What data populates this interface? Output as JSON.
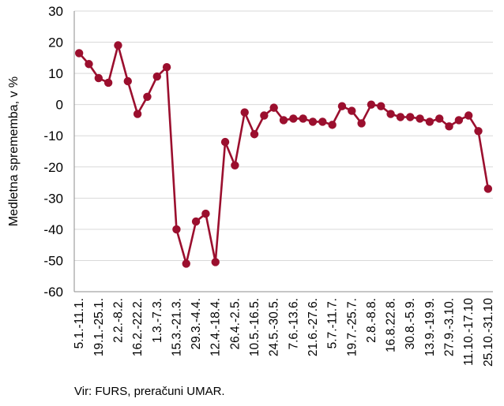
{
  "chart_data": {
    "type": "line",
    "ylabel": "Medletna sprememba, v %",
    "ylim": [
      -60,
      30
    ],
    "yticks": [
      30,
      20,
      10,
      0,
      -10,
      -20,
      -30,
      -40,
      -50,
      -60
    ],
    "grid": "horizontal",
    "categories": [
      "5.1.-11.1.",
      "",
      "19.1.-25.1.",
      "",
      "2.2.-8.2.",
      "",
      "16.2.-22.2.",
      "",
      "1.3.-7.3.",
      "",
      "15.3.-21.3.",
      "",
      "29.3.-4.4.",
      "",
      "12.4.-18.4.",
      "",
      "26.4.-2.5.",
      "",
      "10.5.-16.5.",
      "",
      "24.5.-30.5.",
      "",
      "7.6.-13.6.",
      "",
      "21.6.-27.6.",
      "",
      "5.7.-11.7.",
      "",
      "19.7.-25.7.",
      "",
      "2.8.-8.8.",
      "",
      "16.8.22.8.",
      "",
      "30.8.-5.9.",
      "",
      "13.9.-19.9.",
      "",
      "27.9.-3.10.",
      "",
      "11.10.-17.10",
      "",
      "25.10.-31.10"
    ],
    "series": [
      {
        "color": "#9b0f2e",
        "values": [
          16.5,
          13,
          8.5,
          7,
          19,
          7.5,
          -3,
          2.5,
          9,
          12,
          -40,
          -51,
          -37.5,
          -35,
          -50.5,
          -12,
          -19.5,
          -2.5,
          -9.5,
          -3.5,
          -1,
          -5,
          -4.5,
          -4.5,
          -5.5,
          -5.5,
          -6.5,
          -0.5,
          -2,
          -6,
          0,
          -0.5,
          -3,
          -4,
          -4,
          -4.5,
          -5.5,
          -4.5,
          -7,
          -5,
          -3.5,
          -8.5,
          -27
        ]
      }
    ]
  },
  "source_note": "Vir: FURS, preračuni UMAR."
}
